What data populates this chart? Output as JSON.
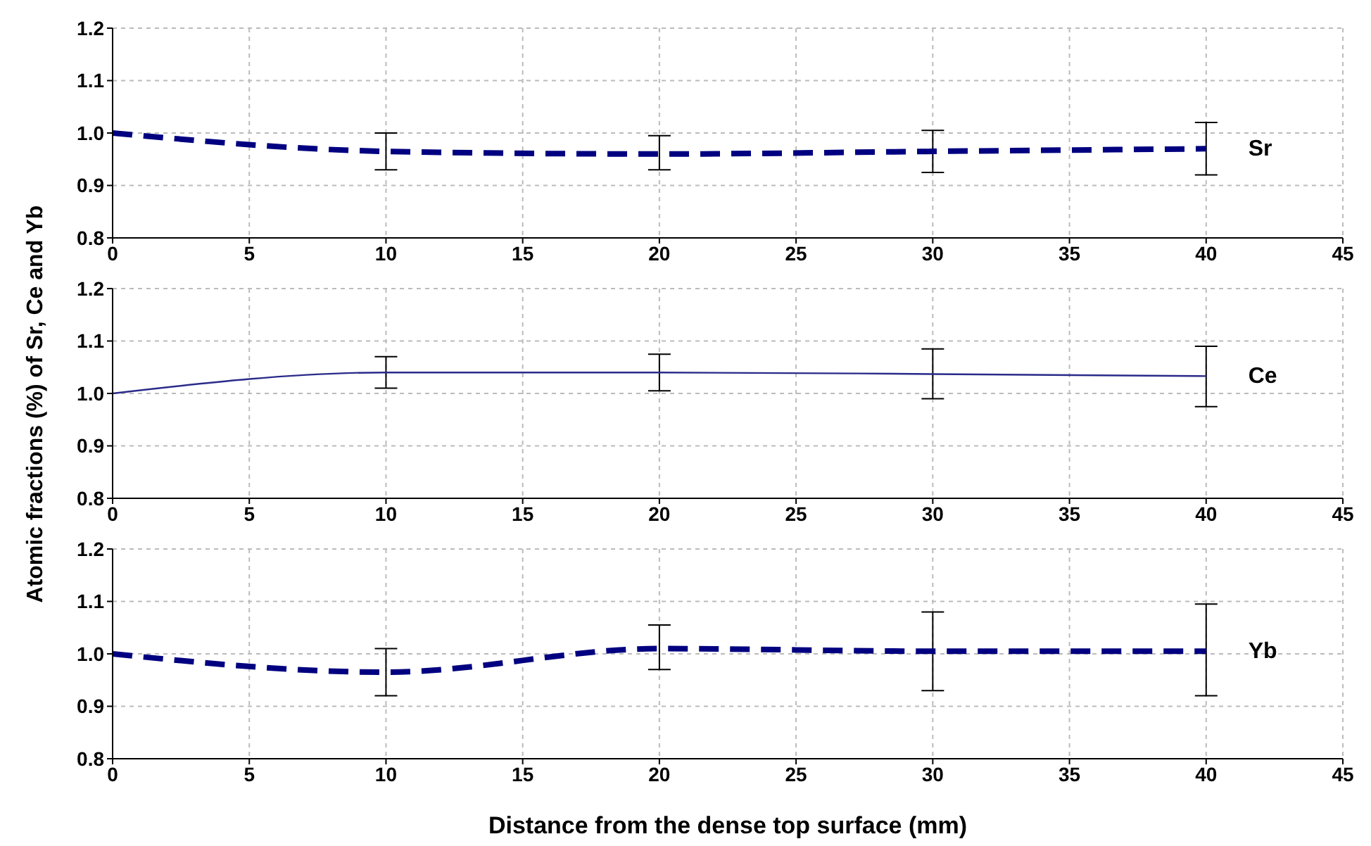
{
  "chart_data": [
    {
      "type": "line",
      "ylabel": "Atomic fractions  (%) of Sr, Ce and Yb",
      "x": [
        0,
        10,
        20,
        30,
        40
      ],
      "xlim": [
        0,
        45
      ],
      "xticks": [
        0,
        5,
        10,
        15,
        20,
        25,
        30,
        35,
        40,
        45
      ],
      "ylim": [
        0.8,
        1.2
      ],
      "yticks": [
        {
          "value": 0.8,
          "label": "0.8"
        },
        {
          "value": 0.9,
          "label": "0.9"
        },
        {
          "value": 1.0,
          "label": "1.0"
        },
        {
          "value": 1.1,
          "label": "1.1"
        },
        {
          "value": 1.2,
          "label": "1.2"
        }
      ],
      "grid": true,
      "legend": false,
      "marker": "none",
      "line_style": "dashed",
      "series": [
        {
          "name": "Sr",
          "color": "#000080",
          "values": [
            1.0,
            0.965,
            0.96,
            0.965,
            0.97
          ],
          "errors": [
            null,
            [
              0.93,
              1.0
            ],
            [
              0.93,
              0.995
            ],
            [
              0.925,
              1.005
            ],
            [
              0.92,
              1.02
            ]
          ]
        }
      ]
    },
    {
      "type": "line",
      "x": [
        0,
        10,
        20,
        30,
        40
      ],
      "xlim": [
        0,
        45
      ],
      "xticks": [
        0,
        5,
        10,
        15,
        20,
        25,
        30,
        35,
        40,
        45
      ],
      "ylim": [
        0.8,
        1.2
      ],
      "yticks": [
        {
          "value": 0.8,
          "label": "0.8"
        },
        {
          "value": 0.9,
          "label": "0.9"
        },
        {
          "value": 1.0,
          "label": "1.0"
        },
        {
          "value": 1.1,
          "label": "1.1"
        },
        {
          "value": 1.2,
          "label": "1.2"
        }
      ],
      "grid": true,
      "legend": false,
      "marker": "none",
      "line_style": "solid",
      "series": [
        {
          "name": "Ce",
          "color": "#2a2a8a",
          "values": [
            1.0,
            1.04,
            1.04,
            1.037,
            1.033
          ],
          "errors": [
            null,
            [
              1.01,
              1.07
            ],
            [
              1.005,
              1.075
            ],
            [
              0.99,
              1.085
            ],
            [
              0.975,
              1.09
            ]
          ]
        }
      ]
    },
    {
      "type": "line",
      "xlabel": "Distance from the dense top surface (mm)",
      "x": [
        0,
        10,
        20,
        30,
        40
      ],
      "xlim": [
        0,
        45
      ],
      "xticks": [
        0,
        5,
        10,
        15,
        20,
        25,
        30,
        35,
        40,
        45
      ],
      "ylim": [
        0.8,
        1.2
      ],
      "yticks": [
        {
          "value": 0.8,
          "label": "0.8"
        },
        {
          "value": 0.9,
          "label": "0.9"
        },
        {
          "value": 1.0,
          "label": "1.0"
        },
        {
          "value": 1.1,
          "label": "1.1"
        },
        {
          "value": 1.2,
          "label": "1.2"
        }
      ],
      "grid": true,
      "legend": false,
      "marker": "none",
      "line_style": "dashed",
      "series": [
        {
          "name": "Yb",
          "color": "#000080",
          "values": [
            1.0,
            0.965,
            1.01,
            1.005,
            1.005
          ],
          "errors": [
            null,
            [
              0.92,
              1.01
            ],
            [
              0.97,
              1.055
            ],
            [
              0.93,
              1.08
            ],
            [
              0.92,
              1.095
            ]
          ]
        }
      ]
    }
  ]
}
